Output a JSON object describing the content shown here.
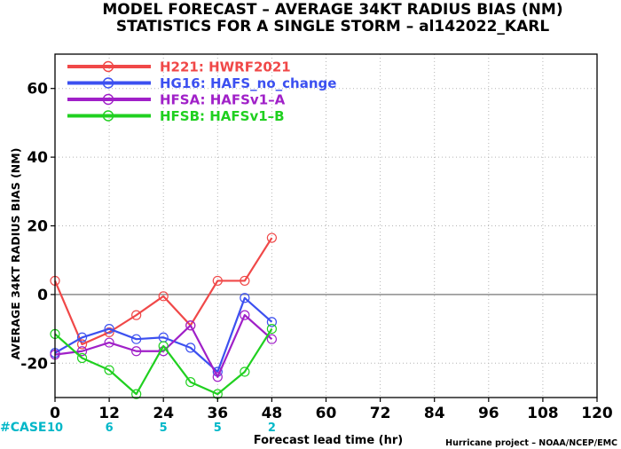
{
  "title_line1": "MODEL FORECAST – AVERAGE 34KT RADIUS BIAS (NM)",
  "title_line2": "STATISTICS FOR A SINGLE STORM – al142022_KARL",
  "case_label": "#CASE",
  "case_color": "#00b7c8",
  "credit": "Hurricane project – NOAA/NCEP/EMC",
  "chart_data": {
    "type": "line",
    "xlabel": "Forecast lead time (hr)",
    "ylabel": "AVERAGE 34KT RADIUS BIAS (NM)",
    "xlim": [
      0,
      120
    ],
    "ylim": [
      -30,
      70
    ],
    "xticks": [
      0,
      12,
      24,
      36,
      48,
      60,
      72,
      84,
      96,
      108,
      120
    ],
    "yticks": [
      -20,
      0,
      20,
      40,
      60
    ],
    "grid": true,
    "grid_style": "dotted",
    "zero_line": true,
    "legend_position": "top-left",
    "cases": [
      {
        "x": 0,
        "n": "10"
      },
      {
        "x": 12,
        "n": "6"
      },
      {
        "x": 24,
        "n": "5"
      },
      {
        "x": 36,
        "n": "5"
      },
      {
        "x": 48,
        "n": "2"
      }
    ],
    "series": [
      {
        "name": "H221: HWRF2021",
        "color": "#f04848",
        "x": [
          0,
          6,
          12,
          18,
          24,
          30,
          36,
          42,
          48
        ],
        "y": [
          4,
          -14.5,
          -11,
          -6,
          -0.5,
          -9,
          4,
          4,
          16.5
        ]
      },
      {
        "name": "HG16: HAFS_no_change",
        "color": "#3c50f0",
        "x": [
          0,
          6,
          12,
          18,
          24,
          30,
          36,
          42,
          48
        ],
        "y": [
          -17,
          -12.5,
          -10,
          -13,
          -12.5,
          -15.5,
          -22.5,
          -1,
          -8
        ]
      },
      {
        "name": "HFSA: HAFSv1–A",
        "color": "#a020c8",
        "x": [
          0,
          6,
          12,
          18,
          24,
          30,
          36,
          42,
          48
        ],
        "y": [
          -17.5,
          -16.5,
          -14,
          -16.5,
          -16.5,
          -9,
          -24,
          -6,
          -13
        ]
      },
      {
        "name": "HFSB: HAFSv1–B",
        "color": "#20d020",
        "x": [
          0,
          6,
          12,
          18,
          24,
          30,
          36,
          42,
          48
        ],
        "y": [
          -11.5,
          -18.5,
          -22,
          -29,
          -15,
          -25.5,
          -29,
          -22.5,
          -10
        ]
      }
    ]
  }
}
